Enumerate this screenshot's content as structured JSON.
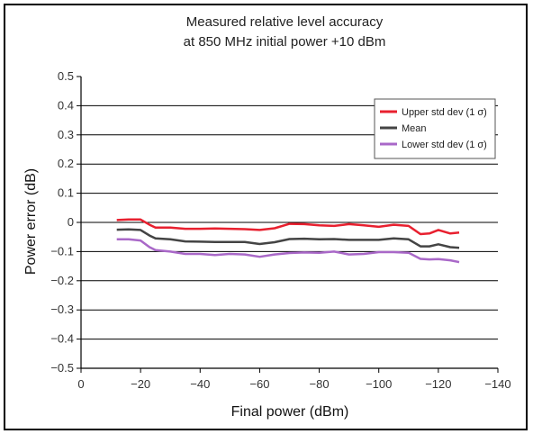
{
  "chart_data": {
    "type": "line",
    "title": [
      "Measured relative level accuracy",
      "at 850 MHz initial power +10 dBm"
    ],
    "xlabel": "Final power (dBm)",
    "ylabel": "Power error (dB)",
    "xlim": [
      0,
      -140
    ],
    "ylim": [
      -0.5,
      0.5
    ],
    "xticks": [
      0,
      -20,
      -40,
      -60,
      -80,
      -100,
      -120,
      -140
    ],
    "yticks": [
      0.5,
      0.4,
      0.3,
      0.2,
      0.1,
      0,
      -0.1,
      -0.2,
      -0.3,
      -0.4,
      -0.5
    ],
    "xtick_labels": [
      "0",
      "−20",
      "−40",
      "−60",
      "−80",
      "−100",
      "−120",
      "−140"
    ],
    "ytick_labels": [
      "0.5",
      "0.4",
      "0.3",
      "0.2",
      "0.1",
      "0",
      "−0.1",
      "−0.2",
      "−0.3",
      "−0.4",
      "−0.5"
    ],
    "grid": "horizontal",
    "legend_position": "top-right",
    "series": [
      {
        "name": "Upper std dev (1 σ)",
        "color": "#e8202f",
        "points": [
          [
            -12,
            0.008
          ],
          [
            -16,
            0.01
          ],
          [
            -20,
            0.01
          ],
          [
            -23,
            -0.008
          ],
          [
            -25,
            -0.018
          ],
          [
            -30,
            -0.018
          ],
          [
            -35,
            -0.022
          ],
          [
            -40,
            -0.022
          ],
          [
            -45,
            -0.021
          ],
          [
            -50,
            -0.022
          ],
          [
            -55,
            -0.023
          ],
          [
            -60,
            -0.026
          ],
          [
            -65,
            -0.02
          ],
          [
            -70,
            -0.005
          ],
          [
            -75,
            -0.006
          ],
          [
            -80,
            -0.01
          ],
          [
            -85,
            -0.012
          ],
          [
            -90,
            -0.006
          ],
          [
            -95,
            -0.01
          ],
          [
            -100,
            -0.015
          ],
          [
            -105,
            -0.008
          ],
          [
            -110,
            -0.012
          ],
          [
            -114,
            -0.04
          ],
          [
            -117,
            -0.038
          ],
          [
            -120,
            -0.026
          ],
          [
            -124,
            -0.038
          ],
          [
            -127,
            -0.035
          ]
        ]
      },
      {
        "name": "Mean",
        "color": "#444444",
        "points": [
          [
            -12,
            -0.025
          ],
          [
            -16,
            -0.024
          ],
          [
            -20,
            -0.026
          ],
          [
            -23,
            -0.045
          ],
          [
            -25,
            -0.055
          ],
          [
            -30,
            -0.058
          ],
          [
            -35,
            -0.065
          ],
          [
            -40,
            -0.066
          ],
          [
            -45,
            -0.067
          ],
          [
            -50,
            -0.067
          ],
          [
            -55,
            -0.067
          ],
          [
            -60,
            -0.074
          ],
          [
            -65,
            -0.068
          ],
          [
            -70,
            -0.057
          ],
          [
            -75,
            -0.056
          ],
          [
            -80,
            -0.058
          ],
          [
            -85,
            -0.057
          ],
          [
            -90,
            -0.06
          ],
          [
            -95,
            -0.06
          ],
          [
            -100,
            -0.06
          ],
          [
            -105,
            -0.055
          ],
          [
            -110,
            -0.058
          ],
          [
            -114,
            -0.082
          ],
          [
            -117,
            -0.082
          ],
          [
            -120,
            -0.075
          ],
          [
            -124,
            -0.085
          ],
          [
            -127,
            -0.087
          ]
        ]
      },
      {
        "name": "Lower std dev (1 σ)",
        "color": "#a968c8",
        "points": [
          [
            -12,
            -0.058
          ],
          [
            -16,
            -0.058
          ],
          [
            -20,
            -0.062
          ],
          [
            -23,
            -0.085
          ],
          [
            -25,
            -0.095
          ],
          [
            -30,
            -0.1
          ],
          [
            -35,
            -0.108
          ],
          [
            -40,
            -0.108
          ],
          [
            -45,
            -0.112
          ],
          [
            -50,
            -0.108
          ],
          [
            -55,
            -0.11
          ],
          [
            -60,
            -0.118
          ],
          [
            -65,
            -0.11
          ],
          [
            -70,
            -0.105
          ],
          [
            -75,
            -0.103
          ],
          [
            -80,
            -0.104
          ],
          [
            -85,
            -0.1
          ],
          [
            -90,
            -0.11
          ],
          [
            -95,
            -0.108
          ],
          [
            -100,
            -0.102
          ],
          [
            -105,
            -0.102
          ],
          [
            -110,
            -0.104
          ],
          [
            -114,
            -0.125
          ],
          [
            -117,
            -0.127
          ],
          [
            -120,
            -0.126
          ],
          [
            -124,
            -0.13
          ],
          [
            -127,
            -0.136
          ]
        ]
      }
    ]
  }
}
